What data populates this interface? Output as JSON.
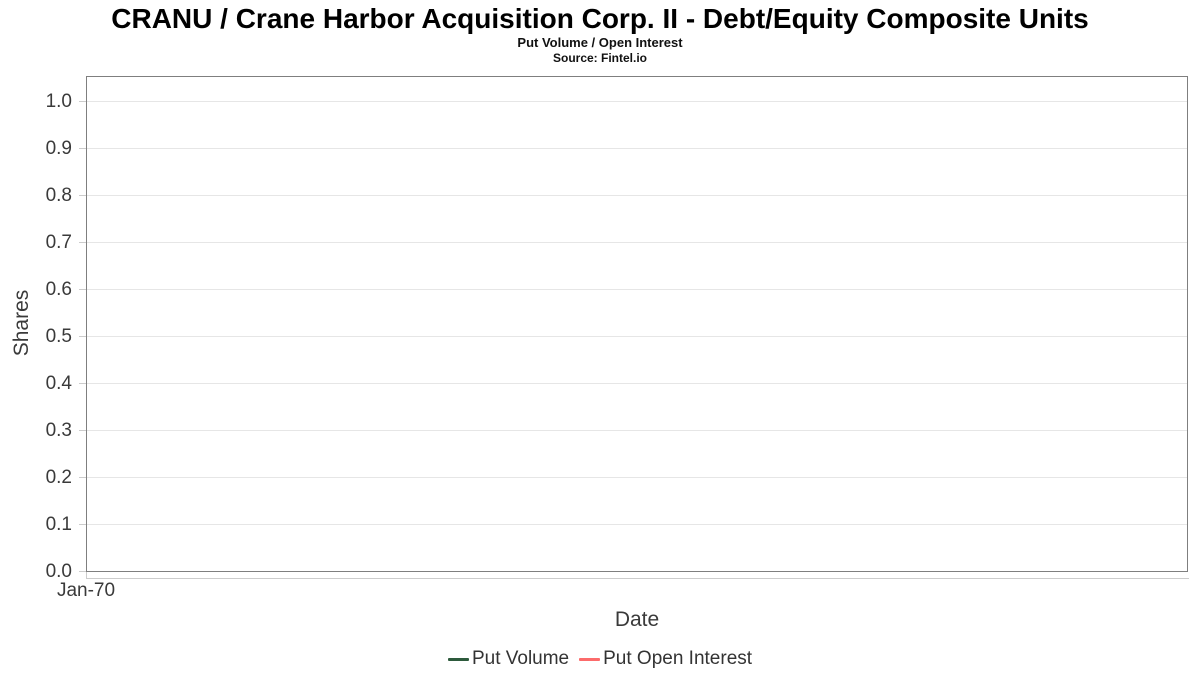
{
  "header": {
    "title": "CRANU / Crane Harbor Acquisition Corp. II - Debt/Equity Composite Units",
    "subtitle": "Put Volume / Open Interest",
    "source": "Source: Fintel.io"
  },
  "chart_data": {
    "type": "line",
    "title": "CRANU / Crane Harbor Acquisition Corp. II - Debt/Equity Composite Units",
    "subtitle": "Put Volume / Open Interest",
    "source": "Source: Fintel.io",
    "xlabel": "Date",
    "ylabel": "Shares",
    "x_ticks": [
      "Jan-70"
    ],
    "y_ticks": [
      "0.0",
      "0.1",
      "0.2",
      "0.3",
      "0.4",
      "0.5",
      "0.6",
      "0.7",
      "0.8",
      "0.9",
      "1.0"
    ],
    "ylim": [
      0,
      1.051
    ],
    "grid": true,
    "legend_position": "bottom",
    "series": [
      {
        "name": "Put Volume",
        "color": "#2d5a3c",
        "x": [],
        "values": []
      },
      {
        "name": "Put Open Interest",
        "color": "#fc6b6b",
        "x": [],
        "values": []
      }
    ]
  },
  "colors": {
    "grid": "#e6e6e6",
    "plot_border": "#7f7f7f",
    "tick": "#cccccc",
    "axis_text": "#3a3a3a",
    "legend_text": "#333333",
    "put_volume": "#2d5a3c",
    "put_open_interest": "#fc6b6b"
  }
}
